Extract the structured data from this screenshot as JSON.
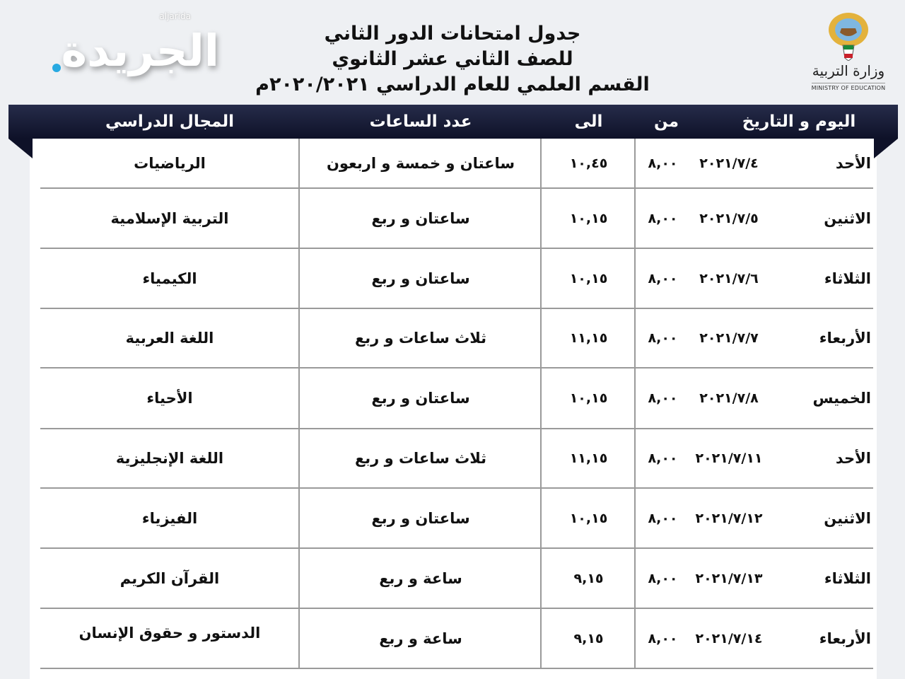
{
  "logos": {
    "newspaper": {
      "arabic": "الجريدة",
      "latin": "aljarida",
      "accent": "#27a9e1"
    },
    "ministry": {
      "arabic": "وزارة التربية",
      "english": "MINISTRY OF EDUCATION"
    }
  },
  "title": {
    "line1": "جدول امتحانات الدور الثاني",
    "line2": "للصف الثاني عشر الثانوي",
    "line3": "القسم العلمي للعام الدراسي ٢٠٢٠/٢٠٢١م"
  },
  "colors": {
    "header_bar": "#151a33",
    "row_divider": "#9a9a9a"
  },
  "table": {
    "headers": {
      "day_date": "اليوم و التاريخ",
      "from": "من",
      "to": "الى",
      "hours": "عدد الساعات",
      "subject": "المجال الدراسي"
    },
    "rows": [
      {
        "day": "الأحد",
        "date": "٢٠٢١/٧/٤",
        "from": "٨,٠٠",
        "to": "١٠,٤٥",
        "hours": "ساعتان و خمسة و اربعون",
        "subject": "الرياضيات"
      },
      {
        "day": "الاثنين",
        "date": "٢٠٢١/٧/٥",
        "from": "٨,٠٠",
        "to": "١٠,١٥",
        "hours": "ساعتان و ربع",
        "subject": "التربية الإسلامية"
      },
      {
        "day": "الثلاثاء",
        "date": "٢٠٢١/٧/٦",
        "from": "٨,٠٠",
        "to": "١٠,١٥",
        "hours": "ساعتان و ربع",
        "subject": "الكيمياء"
      },
      {
        "day": "الأربعاء",
        "date": "٢٠٢١/٧/٧",
        "from": "٨,٠٠",
        "to": "١١,١٥",
        "hours": "ثلاث ساعات و ربع",
        "subject": "اللغة العربية"
      },
      {
        "day": "الخميس",
        "date": "٢٠٢١/٧/٨",
        "from": "٨,٠٠",
        "to": "١٠,١٥",
        "hours": "ساعتان و ربع",
        "subject": "الأحياء"
      },
      {
        "day": "الأحد",
        "date": "٢٠٢١/٧/١١",
        "from": "٨,٠٠",
        "to": "١١,١٥",
        "hours": "ثلاث ساعات و ربع",
        "subject": "اللغة الإنجليزية"
      },
      {
        "day": "الاثنين",
        "date": "٢٠٢١/٧/١٢",
        "from": "٨,٠٠",
        "to": "١٠,١٥",
        "hours": "ساعتان و ربع",
        "subject": "الفيزياء"
      },
      {
        "day": "الثلاثاء",
        "date": "٢٠٢١/٧/١٣",
        "from": "٨,٠٠",
        "to": "٩,١٥",
        "hours": "ساعة و ربع",
        "subject": "القرآن الكريم"
      },
      {
        "day": "الأربعاء",
        "date": "٢٠٢١/٧/١٤",
        "from": "٨,٠٠",
        "to": "٩,١٥",
        "hours": "ساعة و ربع",
        "subject": "الدستور و حقوق الإنسان"
      }
    ]
  }
}
